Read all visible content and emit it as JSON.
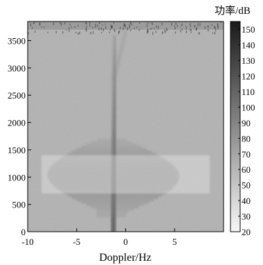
{
  "chart_data": {
    "type": "heatmap",
    "title": "",
    "xlabel": "Doppler/Hz",
    "ylabel": "",
    "xlim": [
      -10,
      10
    ],
    "ylim": [
      0,
      3850
    ],
    "xticks": [
      -10,
      -5,
      0,
      5
    ],
    "yticks": [
      0,
      500,
      1000,
      1500,
      2000,
      2500,
      3000,
      3500
    ],
    "colorbar": {
      "label": "功率/dB",
      "range": [
        20,
        155
      ],
      "ticks": [
        20,
        30,
        40,
        50,
        60,
        70,
        80,
        90,
        100,
        110,
        120,
        130,
        140,
        150
      ],
      "colormap": "gray",
      "high_color": "#1a1a1a",
      "low_color": "#f7f7f7"
    },
    "background_level_db": 62,
    "features": [
      {
        "name": "main_trace",
        "x_range": [
          -1.6,
          -0.9
        ],
        "y_range": [
          0,
          3600
        ],
        "level_db": 120
      },
      {
        "name": "faint_upper_trace",
        "x_range": [
          -1.2,
          0.0
        ],
        "y_range": [
          2800,
          3700
        ],
        "level_db": 85
      },
      {
        "name": "fan_region",
        "x_range": [
          -8.0,
          5.5
        ],
        "y_range": [
          300,
          1700
        ],
        "level_db": 95
      },
      {
        "name": "top_noise_band",
        "x_range": [
          -10,
          10
        ],
        "y_range": [
          3700,
          3850
        ],
        "level_db": 100
      }
    ]
  }
}
